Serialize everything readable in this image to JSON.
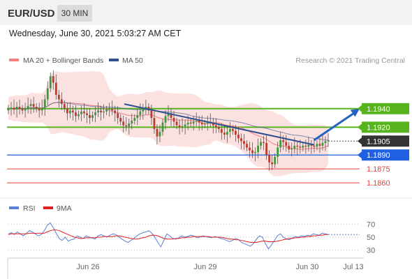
{
  "header": {
    "symbol": "EUR/USD",
    "timeframe": "30 MIN"
  },
  "subtitle": "Wednesday, June 30, 2021 5:03:27 AM CET",
  "colors": {
    "ma20": "#f08080",
    "ma50": "#2e4f8f",
    "green": "#58b41e",
    "blue": "#1f5fe0",
    "red": "#e8403a",
    "dark": "#333333",
    "rsi": "#5b7fd6",
    "ma9": "#e02020",
    "bull": "#3a9a3a",
    "bear": "#c0392b"
  },
  "chart_data": [
    {
      "type": "candlestick",
      "legend": {
        "ma20": "MA 20 + Bollinger Bands",
        "ma50": "MA 50"
      },
      "credit": "Research © 2021 Trading Central",
      "x_tick_labels": [
        "Jun 26",
        "Jun 29",
        "Jun 30",
        "Jul 13"
      ],
      "y_range": [
        1.1845,
        1.1985
      ],
      "levels": [
        {
          "value": 1.194,
          "label": "1.1940",
          "style": "green-box"
        },
        {
          "value": 1.192,
          "label": "1.1920",
          "style": "green-box"
        },
        {
          "value": 1.1905,
          "label": "1.1905",
          "style": "dark-box"
        },
        {
          "value": 1.189,
          "label": "1.1890",
          "style": "blue-box"
        },
        {
          "value": 1.1875,
          "label": "1.1875",
          "style": "red-text"
        },
        {
          "value": 1.186,
          "label": "1.1860",
          "style": "red-text"
        }
      ],
      "trendline": {
        "from": {
          "x": 0.33,
          "y": 1.1945
        },
        "to": {
          "x": 0.87,
          "y": 1.1901
        }
      },
      "projection_arrow": {
        "from": {
          "x": 0.87,
          "y": 1.1906
        },
        "to": {
          "x": 1.0,
          "y": 1.194
        }
      },
      "candles_close": [
        1.194,
        1.1941,
        1.1939,
        1.1942,
        1.194,
        1.1938,
        1.194,
        1.1943,
        1.1945,
        1.1942,
        1.194,
        1.1938,
        1.1941,
        1.195,
        1.1962,
        1.1975,
        1.1968,
        1.1955,
        1.195,
        1.1945,
        1.194,
        1.1935,
        1.1938,
        1.1936,
        1.1932,
        1.1934,
        1.1937,
        1.1935,
        1.1933,
        1.193,
        1.1933,
        1.1936,
        1.1938,
        1.1936,
        1.1937,
        1.1939,
        1.194,
        1.1938,
        1.1935,
        1.193,
        1.1926,
        1.1922,
        1.1921,
        1.1924,
        1.1927,
        1.193,
        1.1933,
        1.1937,
        1.194,
        1.1942,
        1.1938,
        1.193,
        1.1918,
        1.191,
        1.1915,
        1.1925,
        1.1932,
        1.1935,
        1.193,
        1.1926,
        1.1922,
        1.192,
        1.1921,
        1.1923,
        1.1925,
        1.1924,
        1.1926,
        1.1927,
        1.1925,
        1.1923,
        1.1924,
        1.1926,
        1.1925,
        1.1922,
        1.192,
        1.1918,
        1.1914,
        1.1912,
        1.1915,
        1.1918,
        1.1916,
        1.1912,
        1.1908,
        1.1905,
        1.1902,
        1.1898,
        1.1895,
        1.1892,
        1.1893,
        1.19,
        1.1904,
        1.1903,
        1.189,
        1.1882,
        1.188,
        1.1888,
        1.1898,
        1.1906,
        1.1904,
        1.19,
        1.1896,
        1.1897,
        1.19,
        1.1899,
        1.1898,
        1.19,
        1.1899,
        1.1901,
        1.19,
        1.1899,
        1.1902,
        1.19,
        1.1903,
        1.1905,
        1.1906
      ]
    },
    {
      "type": "line",
      "legend": {
        "rsi": "RSI",
        "ma9": "9MA"
      },
      "y_tick_labels": [
        "70",
        "50",
        "30"
      ],
      "y_range": [
        20,
        80
      ],
      "rsi": [
        55,
        57,
        54,
        58,
        55,
        52,
        56,
        60,
        58,
        55,
        52,
        54,
        60,
        68,
        72,
        65,
        56,
        48,
        45,
        50,
        44,
        46,
        47,
        52,
        50,
        48,
        52,
        50,
        49,
        47,
        52,
        54,
        52,
        50,
        53,
        55,
        54,
        50,
        47,
        44,
        42,
        45,
        48,
        52,
        55,
        57,
        58,
        60,
        56,
        50,
        42,
        35,
        45,
        55,
        52,
        48,
        47,
        49,
        52,
        50,
        51,
        53,
        52,
        49,
        50,
        52,
        51,
        50,
        49,
        51,
        50,
        48,
        47,
        45,
        43,
        45,
        48,
        46,
        42,
        40,
        38,
        36,
        40,
        47,
        52,
        50,
        40,
        32,
        38,
        45,
        52,
        55,
        50,
        47,
        46,
        49,
        51,
        50,
        52,
        51,
        53,
        52,
        55,
        54,
        53,
        56,
        55,
        54
      ],
      "ma9": [
        54,
        55,
        55,
        55,
        55,
        55,
        55,
        56,
        56,
        56,
        56,
        56,
        56,
        58,
        60,
        61,
        61,
        60,
        58,
        56,
        54,
        52,
        50,
        49,
        48,
        48,
        49,
        49,
        49,
        49,
        50,
        50,
        51,
        51,
        51,
        51,
        52,
        52,
        51,
        50,
        49,
        48,
        47,
        47,
        48,
        49,
        50,
        52,
        53,
        53,
        52,
        50,
        48,
        47,
        47,
        47,
        48,
        48,
        49,
        49,
        50,
        50,
        51,
        51,
        51,
        51,
        51,
        51,
        50,
        50,
        50,
        50,
        49,
        48,
        47,
        47,
        46,
        46,
        45,
        44,
        43,
        42,
        42,
        42,
        43,
        44,
        44,
        43,
        43,
        43,
        44,
        45,
        46,
        47,
        48,
        48,
        49,
        49,
        50,
        50,
        51,
        51,
        52,
        52,
        53,
        53,
        54,
        54
      ]
    }
  ]
}
